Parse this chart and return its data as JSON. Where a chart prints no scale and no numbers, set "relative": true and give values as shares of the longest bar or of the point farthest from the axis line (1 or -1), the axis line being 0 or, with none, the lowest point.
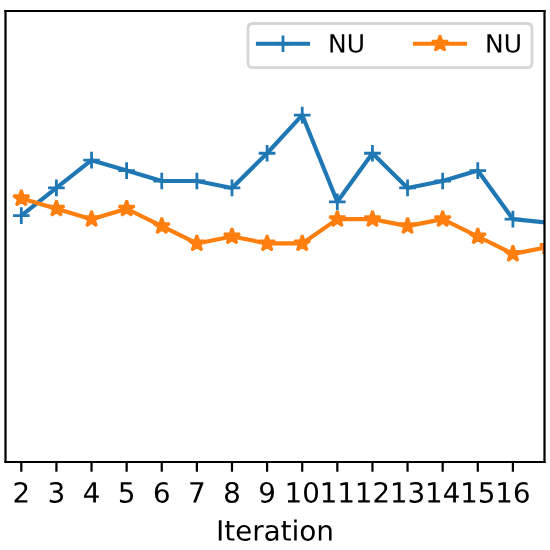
{
  "chart_data": {
    "type": "line",
    "xlabel": "Iteration",
    "relative": true,
    "legend": "top right",
    "grid": false,
    "categories": [
      "2",
      "3",
      "4",
      "5",
      "6",
      "7",
      "8",
      "9",
      "10",
      "11",
      "12",
      "13",
      "14",
      "15",
      "16",
      null
    ],
    "series": [
      {
        "name": "NU",
        "color": "#1f77b4",
        "marker": "cross",
        "values": [
          0.71,
          0.79,
          0.87,
          0.84,
          0.81,
          0.81,
          0.79,
          0.89,
          1,
          0.75,
          0.89,
          0.79,
          0.81,
          0.84,
          0.7,
          0.69
        ]
      },
      {
        "name": "NU",
        "color": "#ff7f0e",
        "marker": "star",
        "values": [
          0.76,
          0.73,
          0.7,
          0.73,
          0.68,
          0.63,
          0.65,
          0.63,
          0.63,
          0.7,
          0.7,
          0.68,
          0.7,
          0.65,
          0.6,
          0.62
        ]
      }
    ]
  }
}
